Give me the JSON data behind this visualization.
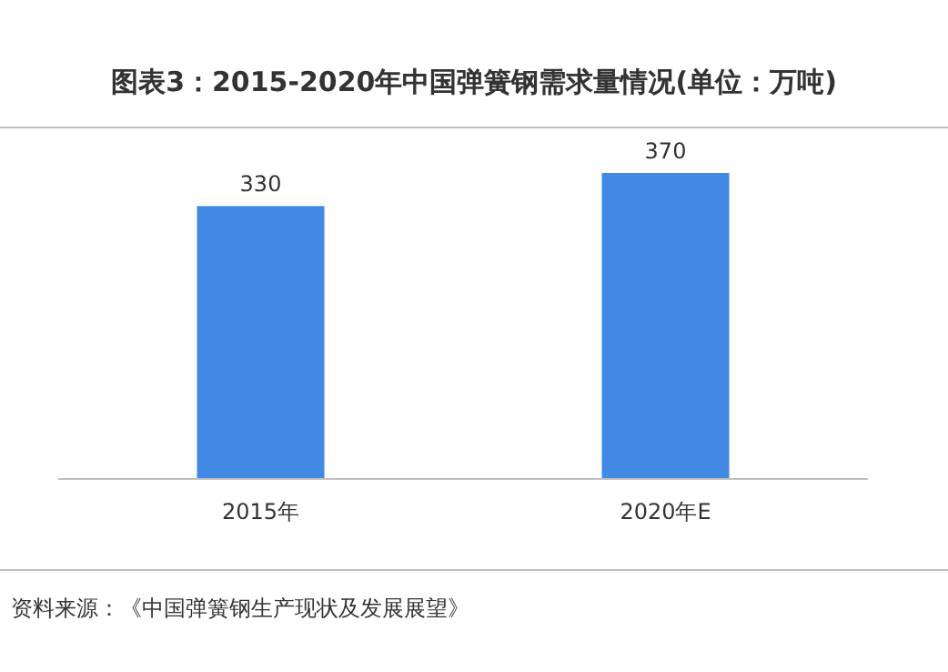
{
  "chart_data": {
    "type": "bar",
    "title": "图表3：2015-2020年中国弹簧钢需求量情况(单位：万吨)",
    "categories": [
      "2015年",
      "2020年E"
    ],
    "values": [
      330,
      370
    ],
    "color": "#4189e3",
    "data_labels": true,
    "annotations": [
      "资料来源：《中国弹簧钢生产现状及发展展望》"
    ]
  }
}
